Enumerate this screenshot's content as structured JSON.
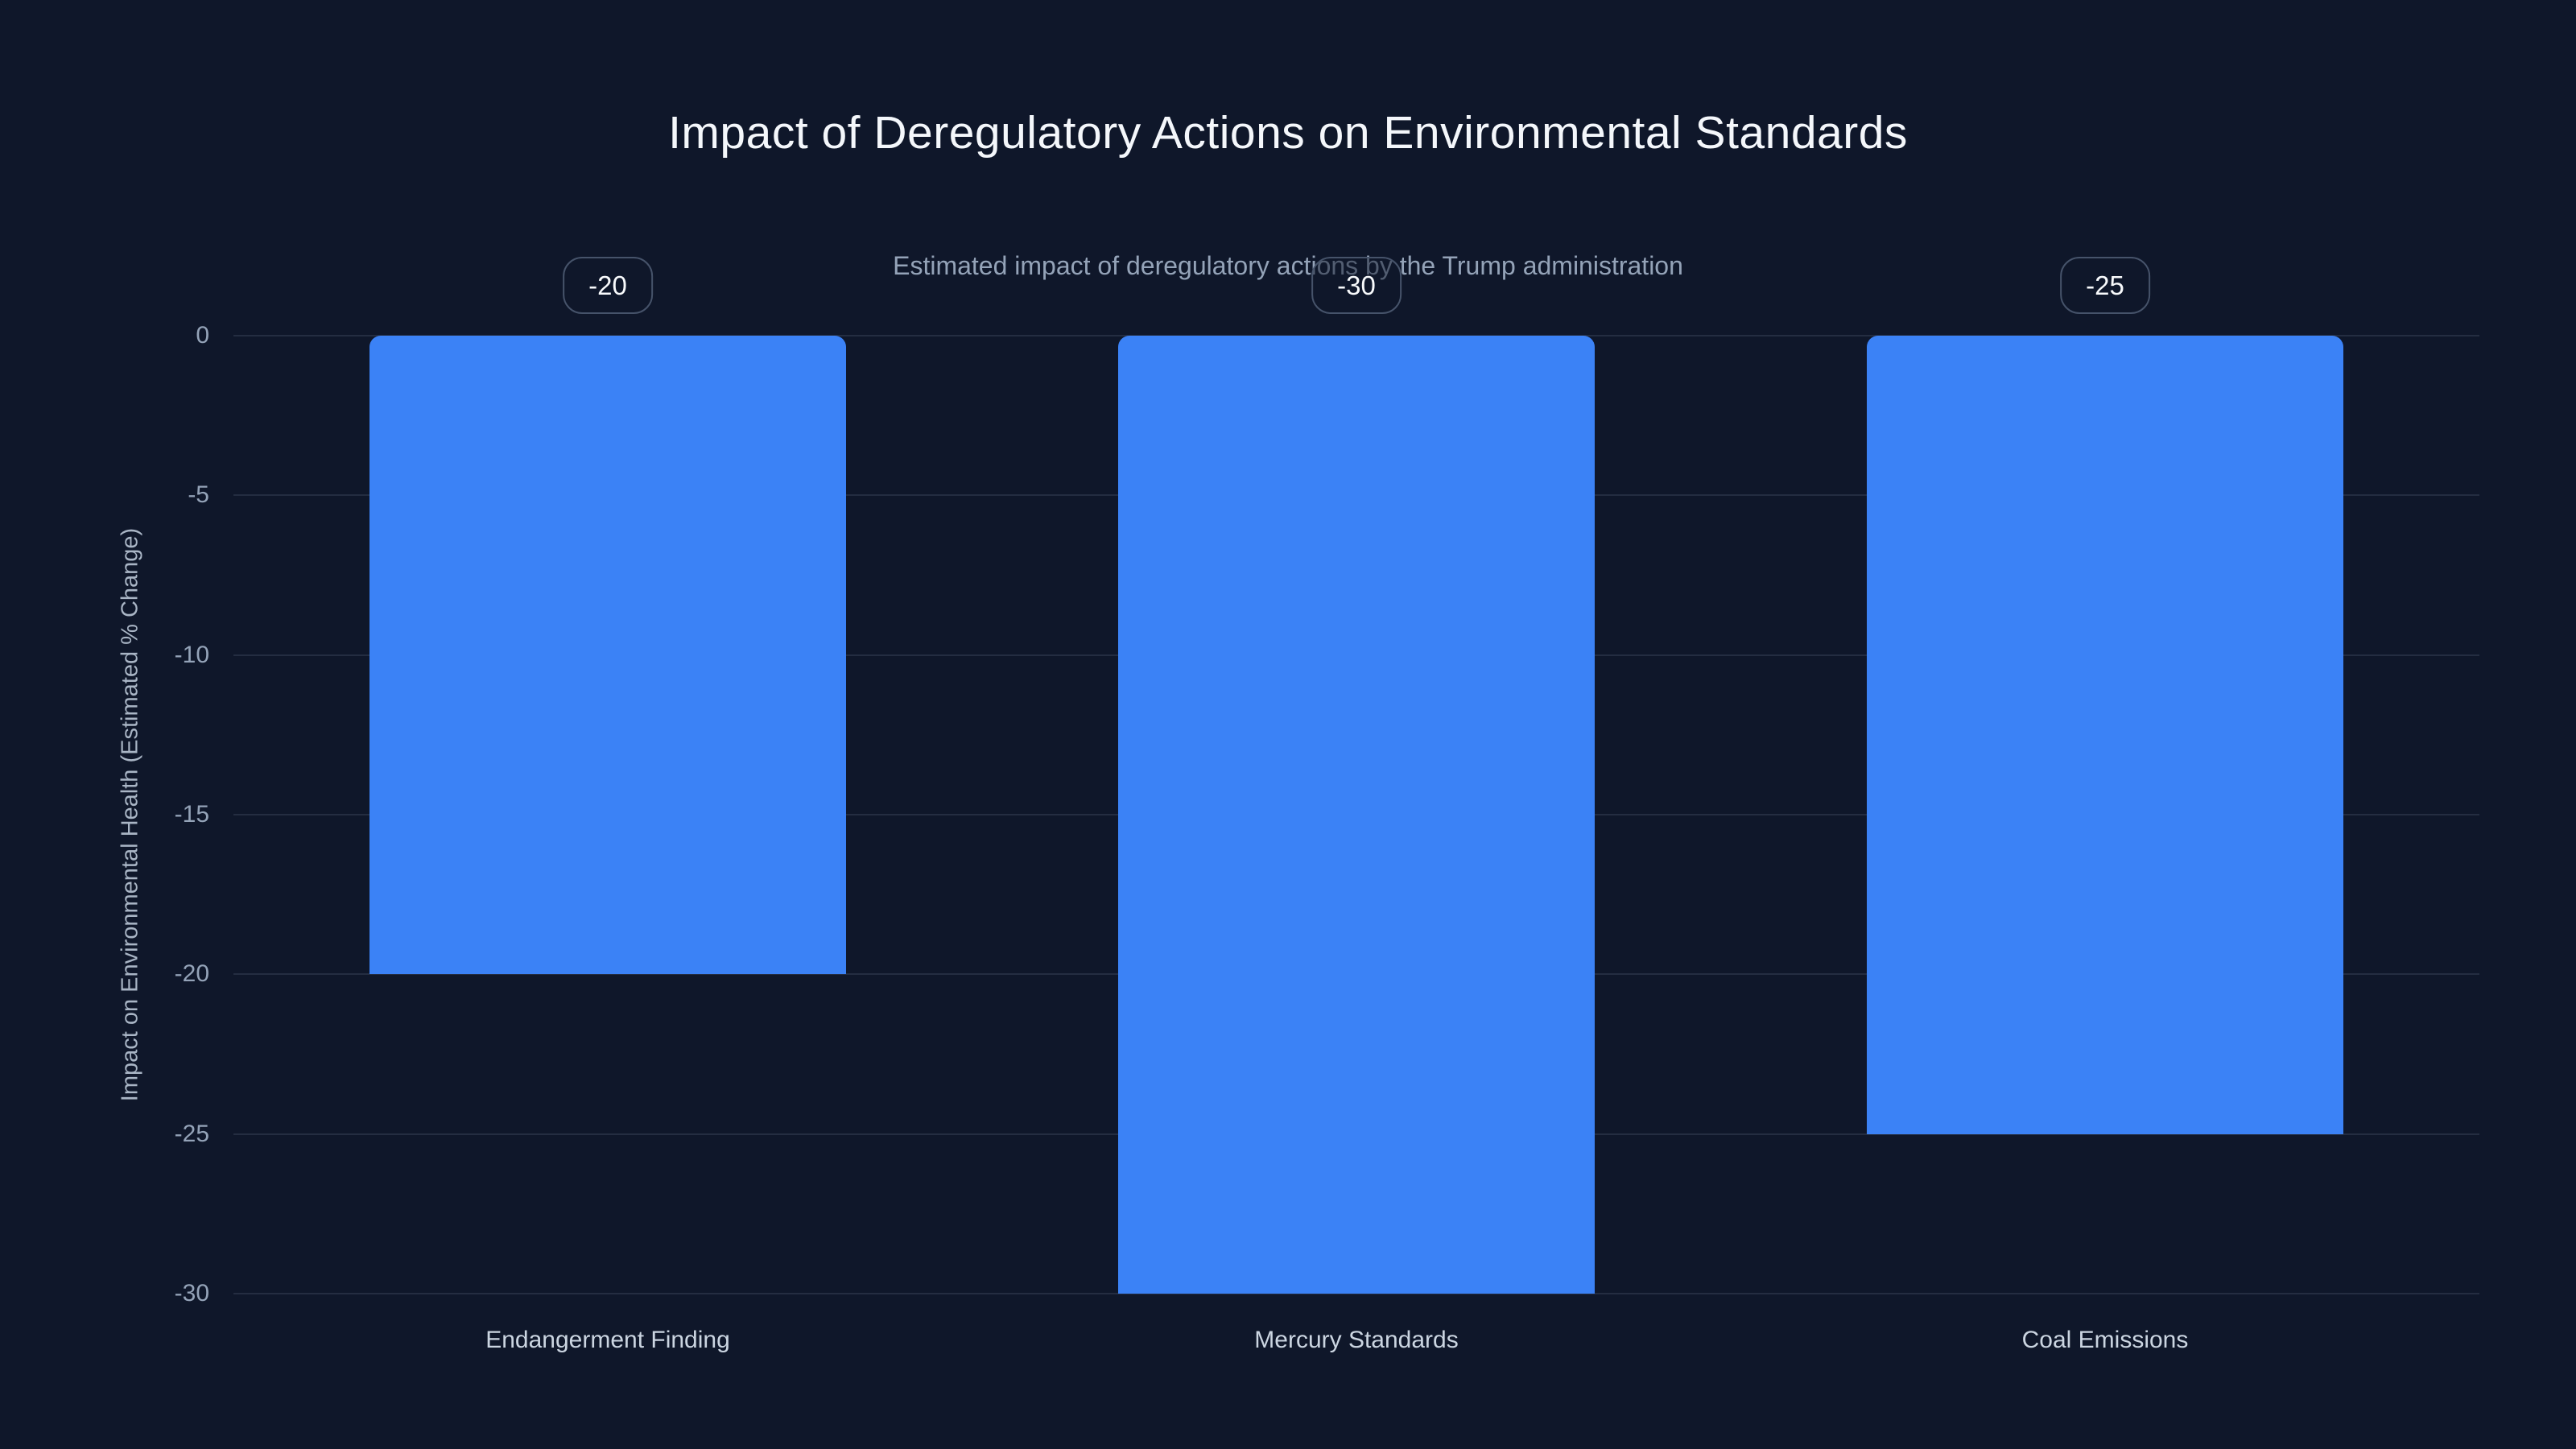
{
  "page": {
    "background_color": "#0f172a"
  },
  "header": {
    "title": "Impact of Deregulatory Actions on Environmental Standards",
    "subtitle": "Estimated impact of deregulatory actions by the Trump administration"
  },
  "chart_data": {
    "type": "bar",
    "title": "Impact of Deregulatory Actions on Environmental Standards",
    "subtitle": "Estimated impact of deregulatory actions by the Trump administration",
    "categories": [
      "Endangerment Finding",
      "Mercury Standards",
      "Coal Emissions"
    ],
    "values": [
      -20,
      -30,
      -25
    ],
    "value_labels": [
      "-20",
      "-30",
      "-25"
    ],
    "xlabel": "",
    "ylabel": "Impact on Environmental Health (Estimated % Change)",
    "ylim": [
      -30,
      0
    ],
    "yticks": [
      0,
      -5,
      -10,
      -15,
      -20,
      -25,
      -30
    ],
    "grid": true,
    "legend": false,
    "bar_color": "#3b82f6",
    "gridline_color": "rgba(148, 163, 184, 0.16)"
  }
}
